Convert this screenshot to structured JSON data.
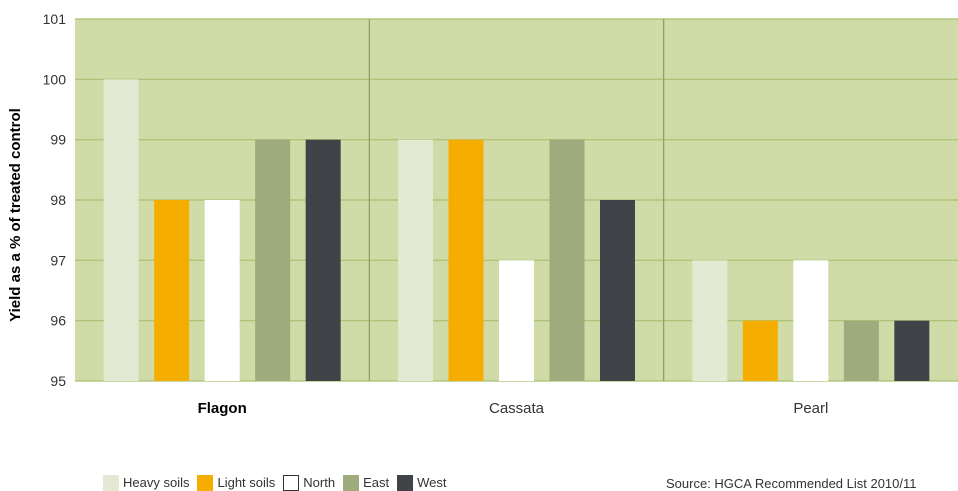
{
  "chart_data": {
    "type": "bar",
    "ylabel": "Yield as a % of treated control",
    "ylim": [
      95,
      101
    ],
    "yticks": [
      95,
      96,
      97,
      98,
      99,
      100,
      101
    ],
    "categories": [
      "Flagon",
      "Cassata",
      "Pearl"
    ],
    "highlighted_category": "Flagon",
    "grid": true,
    "legend_position": "bottom-left",
    "series": [
      {
        "name": "Heavy soils",
        "color": "#e3e9d2",
        "values": [
          100,
          99,
          97
        ]
      },
      {
        "name": "Light soils",
        "color": "#f5ae00",
        "values": [
          98,
          99,
          96
        ]
      },
      {
        "name": "North",
        "color": "#ffffff",
        "values": [
          98,
          97,
          97
        ]
      },
      {
        "name": "East",
        "color": "#9eab7c",
        "values": [
          99,
          99,
          96
        ]
      },
      {
        "name": "West",
        "color": "#404347",
        "values": [
          99,
          98,
          96
        ]
      }
    ],
    "plot_background": "#d0dba8",
    "gridline_color": "#a8c070",
    "separator_color": "#8a9a6a"
  },
  "source": "Source: HGCA Recommended List 2010/11"
}
